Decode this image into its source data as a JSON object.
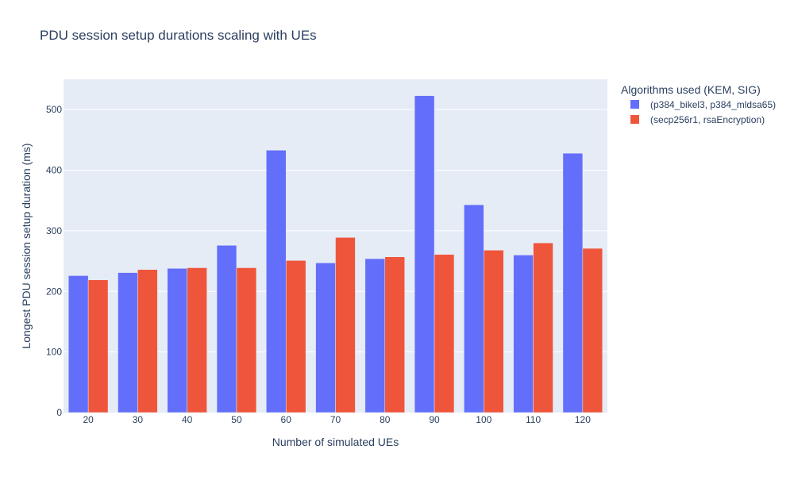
{
  "chart_data": {
    "type": "bar",
    "title": "PDU session setup durations scaling with UEs",
    "xlabel": "Number of simulated UEs",
    "ylabel": "Longest PDU session setup duration (ms)",
    "categories": [
      "20",
      "30",
      "40",
      "50",
      "60",
      "70",
      "80",
      "90",
      "100",
      "110",
      "120"
    ],
    "ylim": [
      0,
      550
    ],
    "yticks": [
      0,
      100,
      200,
      300,
      400,
      500
    ],
    "grid": true,
    "legend": {
      "title": "Algorithms used (KEM, SIG)",
      "placement": "right"
    },
    "series": [
      {
        "name": "(p384_bikel3, p384_mldsa65)",
        "color": "#636efa",
        "values": [
          226,
          231,
          238,
          276,
          433,
          247,
          254,
          523,
          343,
          260,
          428
        ]
      },
      {
        "name": "(secp256r1, rsaEncryption)",
        "color": "#ef553b",
        "values": [
          219,
          236,
          239,
          239,
          251,
          289,
          257,
          261,
          268,
          280,
          271
        ]
      }
    ]
  }
}
